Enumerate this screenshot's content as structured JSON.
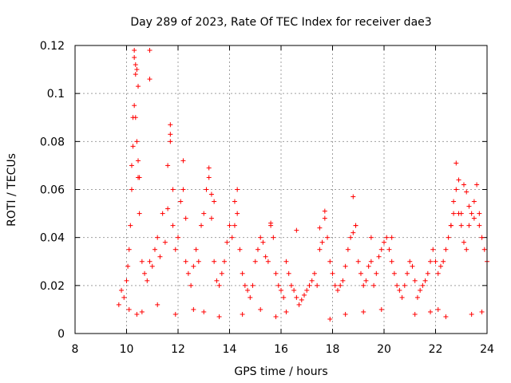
{
  "chart_data": {
    "type": "scatter",
    "title": "Day 289 of 2023, Rate Of TEC Index for receiver dae3",
    "xlabel": "GPS time / hours",
    "ylabel": "ROTI / TECUs",
    "xlim": [
      8,
      24
    ],
    "ylim": [
      0,
      0.12
    ],
    "xticks": [
      8,
      10,
      12,
      14,
      16,
      18,
      20,
      22,
      24
    ],
    "yticks": [
      0,
      0.02,
      0.04,
      0.06,
      0.08,
      0.1,
      0.12
    ],
    "xtick_labels": [
      "8",
      "10",
      "12",
      "14",
      "16",
      "18",
      "20",
      "22",
      "24"
    ],
    "ytick_labels": [
      "0",
      "0.02",
      "0.04",
      "0.06",
      "0.08",
      "0.1",
      "0.12"
    ],
    "grid": true,
    "marker": "+",
    "marker_color": "#ff0000",
    "series": [
      {
        "x": [
          9.7,
          9.8,
          9.9,
          10.0,
          10.05,
          10.1,
          10.15,
          10.2,
          10.25,
          10.3,
          10.35,
          10.4,
          10.45,
          10.5,
          10.6,
          10.7,
          10.8,
          10.9,
          11.0,
          11.1,
          11.2,
          11.3,
          11.4,
          11.5,
          11.6,
          11.7,
          11.8,
          11.9,
          12.0,
          12.1,
          12.2,
          12.3,
          12.4,
          12.5,
          12.6,
          12.7,
          12.8,
          12.9,
          13.0,
          13.1,
          13.2,
          13.3,
          13.4,
          13.5,
          13.6,
          13.7,
          13.8,
          13.9,
          14.0,
          14.1,
          14.2,
          14.3,
          14.4,
          14.5,
          14.6,
          14.7,
          14.8,
          14.9,
          15.0,
          15.1,
          15.2,
          15.3,
          15.4,
          15.5,
          15.6,
          15.7,
          15.8,
          15.9,
          16.0,
          16.1,
          16.2,
          16.3,
          16.4,
          16.5,
          16.6,
          16.7,
          16.8,
          16.9,
          17.0,
          17.1,
          17.2,
          17.3,
          17.4,
          17.5,
          17.6,
          17.7,
          17.8,
          17.9,
          18.0,
          18.1,
          18.2,
          18.3,
          18.4,
          18.5,
          18.6,
          18.7,
          18.8,
          18.9,
          19.0,
          19.1,
          19.2,
          19.3,
          19.4,
          19.5,
          19.6,
          19.7,
          19.8,
          19.9,
          20.0,
          20.1,
          20.2,
          20.3,
          20.4,
          20.5,
          20.6,
          20.7,
          20.8,
          20.9,
          21.0,
          21.1,
          21.2,
          21.3,
          21.4,
          21.5,
          21.6,
          21.7,
          21.8,
          21.9,
          22.0,
          22.1,
          22.2,
          22.3,
          22.4,
          22.5,
          22.6,
          22.7,
          22.8,
          22.9,
          23.0,
          23.1,
          23.2,
          23.3,
          23.4,
          23.5,
          23.6,
          23.7,
          23.8,
          23.9,
          24.0,
          10.3,
          10.35,
          10.4,
          10.45,
          10.3,
          10.35,
          10.9,
          10.9,
          11.7,
          11.7,
          12.2,
          13.2,
          14.3,
          18.8,
          17.7,
          22.8,
          22.9,
          23.1,
          23.2,
          10.2,
          10.25,
          10.45,
          10.5,
          11.6,
          11.8,
          12.3,
          13.3,
          13.4,
          14.2,
          15.6,
          16.6,
          17.5,
          18.9,
          19.5,
          20.3,
          22.6,
          22.7,
          23.0,
          23.3,
          23.5,
          23.7,
          10.1,
          10.4,
          10.6,
          11.2,
          11.9,
          12.6,
          13.0,
          13.6,
          14.5,
          15.2,
          15.8,
          16.2,
          17.9,
          18.5,
          19.2,
          19.9,
          21.2,
          21.8,
          22.1,
          22.4,
          23.4,
          23.8
        ],
        "y": [
          0.012,
          0.018,
          0.015,
          0.022,
          0.028,
          0.035,
          0.045,
          0.06,
          0.09,
          0.115,
          0.108,
          0.08,
          0.065,
          0.05,
          0.03,
          0.025,
          0.022,
          0.03,
          0.028,
          0.035,
          0.04,
          0.032,
          0.05,
          0.038,
          0.07,
          0.08,
          0.045,
          0.035,
          0.04,
          0.055,
          0.06,
          0.03,
          0.025,
          0.02,
          0.028,
          0.035,
          0.03,
          0.045,
          0.05,
          0.06,
          0.065,
          0.048,
          0.03,
          0.022,
          0.02,
          0.025,
          0.03,
          0.038,
          0.045,
          0.04,
          0.055,
          0.05,
          0.035,
          0.025,
          0.02,
          0.018,
          0.015,
          0.02,
          0.03,
          0.035,
          0.04,
          0.038,
          0.032,
          0.03,
          0.045,
          0.04,
          0.025,
          0.02,
          0.018,
          0.015,
          0.03,
          0.025,
          0.02,
          0.018,
          0.015,
          0.012,
          0.014,
          0.016,
          0.018,
          0.02,
          0.022,
          0.025,
          0.02,
          0.035,
          0.038,
          0.048,
          0.04,
          0.03,
          0.025,
          0.02,
          0.018,
          0.02,
          0.022,
          0.028,
          0.035,
          0.04,
          0.042,
          0.045,
          0.03,
          0.025,
          0.02,
          0.022,
          0.028,
          0.03,
          0.02,
          0.025,
          0.032,
          0.035,
          0.038,
          0.04,
          0.035,
          0.03,
          0.025,
          0.02,
          0.018,
          0.015,
          0.02,
          0.025,
          0.03,
          0.028,
          0.022,
          0.015,
          0.018,
          0.02,
          0.022,
          0.025,
          0.03,
          0.035,
          0.03,
          0.025,
          0.028,
          0.03,
          0.035,
          0.04,
          0.045,
          0.055,
          0.06,
          0.05,
          0.045,
          0.038,
          0.035,
          0.045,
          0.05,
          0.055,
          0.062,
          0.05,
          0.04,
          0.035,
          0.03,
          0.118,
          0.112,
          0.11,
          0.103,
          0.095,
          0.09,
          0.118,
          0.106,
          0.087,
          0.083,
          0.072,
          0.069,
          0.06,
          0.057,
          0.051,
          0.071,
          0.064,
          0.062,
          0.059,
          0.07,
          0.078,
          0.072,
          0.065,
          0.052,
          0.06,
          0.048,
          0.058,
          0.055,
          0.045,
          0.046,
          0.043,
          0.044,
          0.045,
          0.04,
          0.04,
          0.045,
          0.05,
          0.05,
          0.053,
          0.048,
          0.045,
          0.01,
          0.008,
          0.009,
          0.012,
          0.008,
          0.01,
          0.009,
          0.007,
          0.008,
          0.01,
          0.007,
          0.009,
          0.006,
          0.008,
          0.009,
          0.01,
          0.008,
          0.009,
          0.01,
          0.007,
          0.008,
          0.009
        ]
      }
    ]
  }
}
